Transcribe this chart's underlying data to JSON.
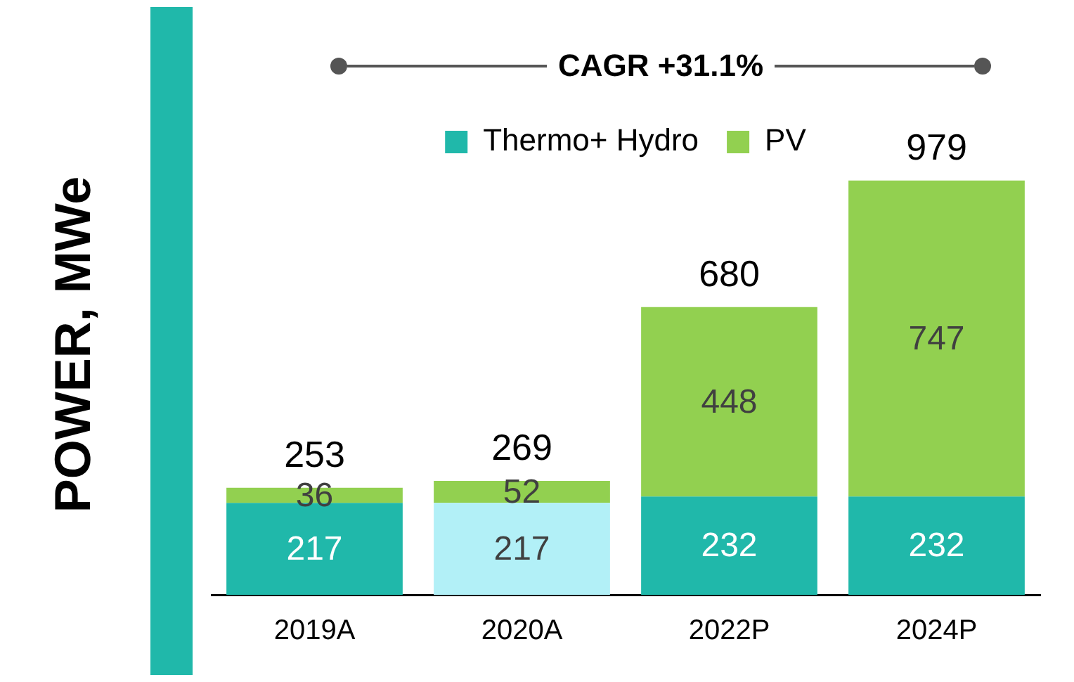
{
  "chart_data": {
    "type": "bar",
    "ylabel": "POWER, MWe",
    "annotations": [
      "CAGR +31.1%"
    ],
    "categories": [
      "2019A",
      "2020A",
      "2022P",
      "2024P"
    ],
    "series": [
      {
        "name": "Thermo+ Hydro",
        "color": "#20b8aa",
        "colors": [
          "#20b8aa",
          "#b2f0f7",
          "#20b8aa",
          "#20b8aa"
        ],
        "values": [
          217,
          217,
          232,
          232
        ]
      },
      {
        "name": "PV",
        "color": "#92d050",
        "values": [
          36,
          52,
          448,
          747
        ]
      }
    ],
    "stacked": true,
    "data_labels": true,
    "totals": [
      "253",
      "269",
      "680",
      "979"
    ],
    "legend": "top",
    "grid": false,
    "tick_labels": "x"
  }
}
